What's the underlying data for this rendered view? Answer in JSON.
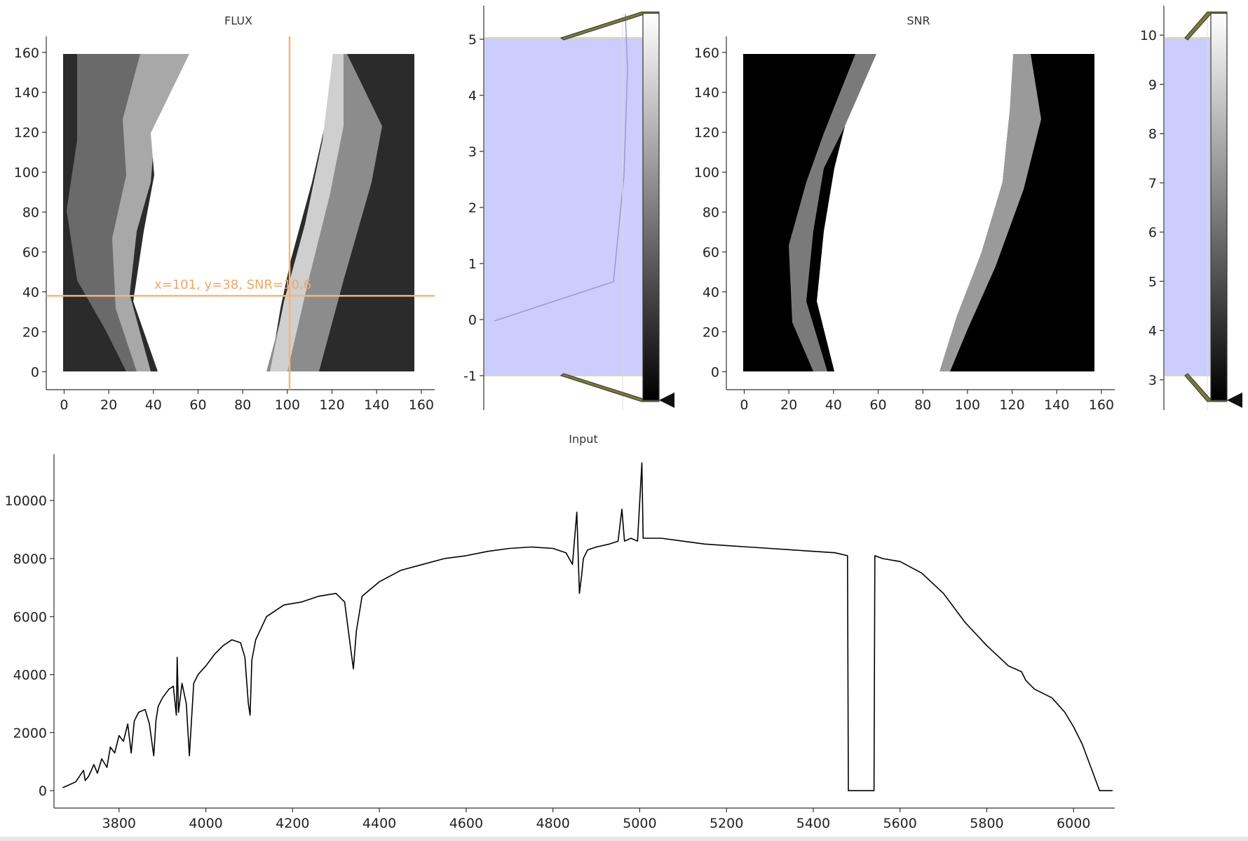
{
  "panels": {
    "flux": {
      "title": "FLUX",
      "crosshair_label": "x=101, y=38, SNR=10.6",
      "crosshair": {
        "x": 101,
        "y": 38
      },
      "xticks": [
        0,
        20,
        40,
        60,
        80,
        100,
        120,
        140,
        160
      ],
      "yticks": [
        0,
        20,
        40,
        60,
        80,
        100,
        120,
        140,
        160
      ],
      "xlim": [
        -8,
        166
      ],
      "ylim": [
        -9,
        168
      ],
      "colors": {
        "background": "#2b2b2b",
        "crosshair": "#f5b57a"
      }
    },
    "flux_scale": {
      "yticks": [
        -1,
        0,
        1,
        2,
        3,
        4,
        5
      ],
      "ylim": [
        -1.6,
        5.6
      ],
      "range": [
        -1,
        5
      ],
      "fill_color": "#ccccff"
    },
    "snr": {
      "title": "SNR",
      "xticks": [
        0,
        20,
        40,
        60,
        80,
        100,
        120,
        140,
        160
      ],
      "yticks": [
        0,
        20,
        40,
        60,
        80,
        100,
        120,
        140,
        160
      ],
      "xlim": [
        -8,
        166
      ],
      "ylim": [
        -9,
        168
      ],
      "colors": {
        "background": "#000000"
      }
    },
    "snr_scale": {
      "yticks": [
        3,
        4,
        5,
        6,
        7,
        8,
        9,
        10
      ],
      "ylim": [
        2.4,
        10.6
      ],
      "range": [
        3,
        10
      ],
      "fill_color": "#ccccff"
    }
  },
  "chart_data": {
    "type": "line",
    "title": "Input",
    "xlabel": "",
    "ylabel": "",
    "xlim": [
      3650,
      6095
    ],
    "ylim": [
      -600,
      11600
    ],
    "xticks": [
      3800,
      4000,
      4200,
      4400,
      4600,
      4800,
      5000,
      5200,
      5400,
      5600,
      5800,
      6000
    ],
    "yticks": [
      0,
      2000,
      4000,
      6000,
      8000,
      10000
    ],
    "grid": false,
    "series": [
      {
        "x": [
          3670,
          3700,
          3718,
          3722,
          3730,
          3742,
          3750,
          3760,
          3772,
          3780,
          3790,
          3800,
          3810,
          3820,
          3828,
          3835,
          3845,
          3860,
          3870,
          3880,
          3885,
          3890,
          3900,
          3915,
          3925,
          3932,
          3934,
          3937,
          3945,
          3955,
          3962,
          3968,
          3972,
          3982,
          4000,
          4020,
          4040,
          4060,
          4080,
          4090,
          4098,
          4102,
          4106,
          4115,
          4140,
          4180,
          4220,
          4260,
          4300,
          4320,
          4333,
          4340,
          4347,
          4360,
          4400,
          4450,
          4500,
          4550,
          4600,
          4650,
          4700,
          4750,
          4800,
          4830,
          4845,
          4855,
          4861,
          4866,
          4870,
          4880,
          4900,
          4930,
          4950,
          4959,
          4965,
          4980,
          4995,
          5005,
          5008,
          5015,
          5050,
          5100,
          5150,
          5200,
          5250,
          5300,
          5350,
          5400,
          5450,
          5479,
          5481,
          5540,
          5542,
          5560,
          5600,
          5650,
          5700,
          5750,
          5800,
          5850,
          5880,
          5890,
          5910,
          5950,
          5980,
          6000,
          6020,
          6040,
          6055,
          6060,
          6090
        ],
        "y": [
          100,
          300,
          700,
          350,
          500,
          900,
          600,
          1100,
          800,
          1500,
          1300,
          1900,
          1700,
          2300,
          1300,
          2400,
          2700,
          2800,
          2300,
          1200,
          2400,
          2900,
          3200,
          3500,
          3600,
          2600,
          4600,
          2700,
          3700,
          3000,
          1200,
          2700,
          3700,
          4000,
          4300,
          4700,
          5000,
          5200,
          5100,
          4600,
          3000,
          2600,
          4500,
          5200,
          6000,
          6400,
          6500,
          6700,
          6800,
          6500,
          5000,
          4200,
          5500,
          6700,
          7200,
          7600,
          7800,
          8000,
          8100,
          8250,
          8350,
          8400,
          8350,
          8200,
          7800,
          9600,
          6800,
          7400,
          8000,
          8300,
          8400,
          8500,
          8600,
          9700,
          8600,
          8700,
          8600,
          11300,
          8700,
          8700,
          8700,
          8600,
          8500,
          8450,
          8400,
          8350,
          8300,
          8250,
          8200,
          8100,
          0,
          0,
          8100,
          8000,
          7900,
          7500,
          6800,
          5800,
          5000,
          4300,
          4100,
          3800,
          3500,
          3200,
          2700,
          2200,
          1600,
          800,
          200,
          0,
          0
        ]
      }
    ]
  }
}
